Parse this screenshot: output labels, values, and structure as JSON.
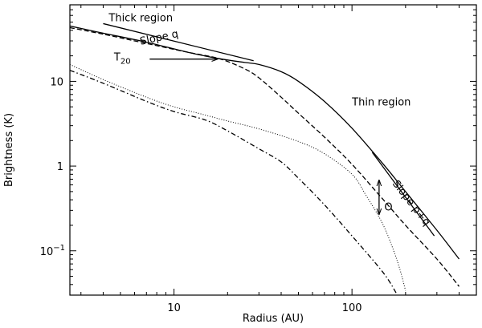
{
  "chart_data": {
    "type": "line",
    "title": "",
    "xlabel": "Radius (AU)",
    "ylabel": "Brightness (K)",
    "xscale": "log",
    "yscale": "log",
    "xlim": [
      2.6,
      500
    ],
    "ylim": [
      0.03,
      80
    ],
    "grid": false,
    "legend": "none",
    "x_ticks": [
      {
        "value": 10,
        "label": "10"
      },
      {
        "value": 100,
        "label": "100"
      }
    ],
    "y_ticks": [
      {
        "value": 0.1,
        "label": "10",
        "exp": "−1"
      },
      {
        "value": 1,
        "label": "1"
      },
      {
        "value": 10,
        "label": "10"
      }
    ],
    "series": [
      {
        "name": "solid",
        "style": "solid",
        "color": "#000000",
        "points": [
          [
            2.6,
            45
          ],
          [
            4,
            37
          ],
          [
            7,
            29
          ],
          [
            12,
            22
          ],
          [
            18,
            18.5
          ],
          [
            25,
            16.7
          ],
          [
            30,
            15.8
          ],
          [
            40,
            13
          ],
          [
            50,
            10
          ],
          [
            70,
            5.8
          ],
          [
            100,
            2.8
          ],
          [
            150,
            1.05
          ],
          [
            200,
            0.5
          ],
          [
            300,
            0.175
          ],
          [
            400,
            0.08
          ]
        ]
      },
      {
        "name": "dashed",
        "style": "dashed",
        "color": "#000000",
        "points": [
          [
            2.6,
            43
          ],
          [
            4,
            36
          ],
          [
            7,
            28
          ],
          [
            12,
            22
          ],
          [
            18,
            18.5
          ],
          [
            25,
            14
          ],
          [
            30,
            11
          ],
          [
            40,
            6.5
          ],
          [
            50,
            4.2
          ],
          [
            70,
            2.2
          ],
          [
            100,
            1.05
          ],
          [
            150,
            0.4
          ],
          [
            200,
            0.2
          ],
          [
            300,
            0.08
          ],
          [
            400,
            0.038
          ]
        ]
      },
      {
        "name": "dotted",
        "style": "dotted",
        "color": "#000000",
        "points": [
          [
            2.6,
            15.8
          ],
          [
            4,
            10.5
          ],
          [
            7,
            6.5
          ],
          [
            10,
            5
          ],
          [
            15,
            4
          ],
          [
            20,
            3.4
          ],
          [
            30,
            2.75
          ],
          [
            50,
            1.95
          ],
          [
            70,
            1.4
          ],
          [
            100,
            0.8
          ],
          [
            120,
            0.45
          ],
          [
            150,
            0.2
          ],
          [
            180,
            0.075
          ],
          [
            200,
            0.034
          ]
        ]
      },
      {
        "name": "dash-dot",
        "style": "dashdot",
        "color": "#000000",
        "points": [
          [
            2.6,
            13.5
          ],
          [
            4,
            9.5
          ],
          [
            7,
            5.8
          ],
          [
            10,
            4.4
          ],
          [
            15,
            3.5
          ],
          [
            20,
            2.6
          ],
          [
            30,
            1.6
          ],
          [
            40,
            1.12
          ],
          [
            50,
            0.72
          ],
          [
            70,
            0.35
          ],
          [
            100,
            0.15
          ],
          [
            150,
            0.055
          ],
          [
            180,
            0.03
          ]
        ]
      }
    ],
    "guide_lines": [
      {
        "name": "slope-q-line",
        "points": [
          [
            4,
            48
          ],
          [
            28,
            17.5
          ]
        ]
      },
      {
        "name": "slope-p-plus-q-line",
        "points": [
          [
            130,
            1.45
          ],
          [
            290,
            0.15
          ]
        ]
      }
    ],
    "annotations": [
      {
        "name": "thick-region-label",
        "text": "Thick region",
        "x": 4.3,
        "y": 51
      },
      {
        "name": "slope-q-label",
        "text": "Slope  q",
        "x": 6.5,
        "y": 27,
        "rotate": -12
      },
      {
        "name": "t20-label",
        "text": "T",
        "subscript": "20",
        "x": 4.6,
        "y": 17.5
      },
      {
        "name": "thin-region-label",
        "text": "Thin region",
        "x": 100,
        "y": 5.2
      },
      {
        "name": "slope-pq-label",
        "text": "Slope p+q",
        "x": 168,
        "y": 0.62,
        "rotate": 52
      },
      {
        "name": "o-label",
        "text": "O",
        "x": 152,
        "y": 0.3
      }
    ],
    "arrows": [
      {
        "name": "t20-arrow",
        "from": [
          7.3,
          18.3
        ],
        "to": [
          17.5,
          18.3
        ],
        "heads": "end"
      },
      {
        "name": "offset-arrow",
        "from": [
          142,
          0.68
        ],
        "to": [
          142,
          0.27
        ],
        "heads": "both"
      }
    ]
  }
}
